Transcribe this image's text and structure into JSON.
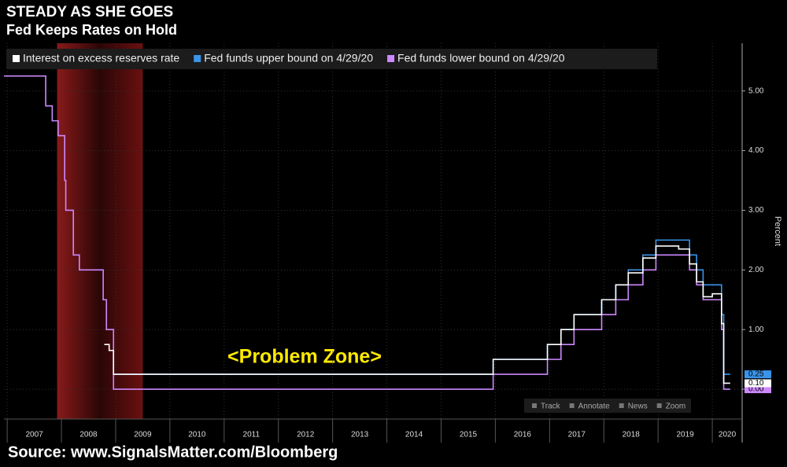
{
  "chart_data": {
    "type": "line",
    "step": true,
    "title": "STEADY AS SHE GOES",
    "subtitle": "Fed Keeps Rates on Hold",
    "y_label": "Percent",
    "annotation": "<Problem Zone>",
    "source": "Source: www.SignalsMatter.com/Bloomberg",
    "toolbar": [
      "Track",
      "Annotate",
      "News",
      "Zoom"
    ],
    "recession": [
      2007.92,
      2009.5
    ],
    "xlim": [
      2006.94,
      2020.55
    ],
    "xticks": [
      2007,
      2008,
      2009,
      2010,
      2011,
      2012,
      2013,
      2014,
      2015,
      2016,
      2017,
      2018,
      2019,
      2020
    ],
    "ylim": [
      -0.5,
      5.8
    ],
    "yticks": [
      {
        "value": 0,
        "label": "0.00"
      },
      {
        "value": 1,
        "label": "1.00"
      },
      {
        "value": 2,
        "label": "2.00"
      },
      {
        "value": 3,
        "label": "3.00"
      },
      {
        "value": 4,
        "label": "4.00"
      },
      {
        "value": 5,
        "label": "5.00"
      }
    ],
    "grid": true,
    "series": [
      {
        "name": "Fed funds lower bound on 4/29/20",
        "color": "#cc88ff",
        "x": [
          2006.94,
          2007.71,
          2007.83,
          2007.94,
          2008.06,
          2008.08,
          2008.22,
          2008.33,
          2008.77,
          2008.83,
          2008.96,
          2015.96,
          2016.96,
          2017.21,
          2017.45,
          2017.96,
          2018.22,
          2018.45,
          2018.72,
          2018.96,
          2019.58,
          2019.71,
          2019.83,
          2020.17,
          2020.21,
          2020.33
        ],
        "values": [
          5.25,
          4.75,
          4.5,
          4.25,
          3.5,
          3.0,
          2.25,
          2.0,
          1.5,
          1.0,
          0.0,
          0.25,
          0.5,
          0.75,
          1.0,
          1.25,
          1.5,
          1.75,
          2.0,
          2.25,
          2.0,
          1.75,
          1.5,
          1.0,
          0.0,
          0.0
        ],
        "end_label": {
          "value": 0.0,
          "label": "0.00"
        }
      },
      {
        "name": "Fed funds upper bound on 4/29/20",
        "color": "#3a94ea",
        "x": [
          2008.96,
          2015.96,
          2016.96,
          2017.21,
          2017.45,
          2017.96,
          2018.22,
          2018.45,
          2018.72,
          2018.96,
          2019.58,
          2019.71,
          2019.83,
          2020.17,
          2020.21,
          2020.33
        ],
        "values": [
          0.25,
          0.5,
          0.75,
          1.0,
          1.25,
          1.5,
          1.75,
          2.0,
          2.25,
          2.5,
          2.25,
          2.0,
          1.75,
          1.25,
          0.25,
          0.25
        ],
        "end_label": {
          "value": 0.25,
          "label": "0.25"
        }
      },
      {
        "name": "Interest on excess reserves rate",
        "color": "#ffffff",
        "x": [
          2008.79,
          2008.88,
          2008.96,
          2015.96,
          2016.96,
          2017.21,
          2017.45,
          2017.96,
          2018.22,
          2018.45,
          2018.72,
          2018.96,
          2019.38,
          2019.58,
          2019.71,
          2019.83,
          2020.0,
          2020.17,
          2020.21,
          2020.33
        ],
        "values": [
          0.75,
          0.65,
          0.25,
          0.5,
          0.75,
          1.0,
          1.25,
          1.5,
          1.75,
          1.95,
          2.2,
          2.4,
          2.35,
          2.1,
          1.8,
          1.55,
          1.6,
          1.1,
          0.1,
          0.1
        ],
        "end_label": {
          "value": 0.1,
          "label": "0.10"
        }
      }
    ]
  }
}
